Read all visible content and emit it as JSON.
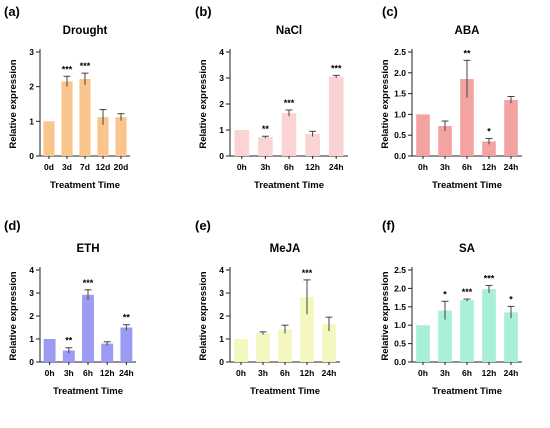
{
  "chart_data": [
    {
      "panel": "(a)",
      "type": "bar",
      "title": "Drought",
      "xlabel": "Treatment Time",
      "ylabel": "Relative expression",
      "categories": [
        "0d",
        "3d",
        "7d",
        "12d",
        "20d"
      ],
      "values": [
        1.0,
        2.15,
        2.22,
        1.12,
        1.12
      ],
      "errors": [
        0.0,
        0.15,
        0.17,
        0.22,
        0.1
      ],
      "significance": [
        "",
        "***",
        "***",
        "",
        ""
      ],
      "ylim": [
        0,
        3
      ],
      "yticks": [
        0,
        1,
        2,
        3
      ],
      "yticklabels": [
        "0",
        "1",
        "2",
        "3"
      ],
      "color": "#F9C58D"
    },
    {
      "panel": "(b)",
      "type": "bar",
      "title": "NaCl",
      "xlabel": "Treatment Time",
      "ylabel": "Relative expression",
      "categories": [
        "0h",
        "3h",
        "6h",
        "12h",
        "24h"
      ],
      "values": [
        1.0,
        0.72,
        1.65,
        0.85,
        3.05
      ],
      "errors": [
        0.0,
        0.04,
        0.12,
        0.1,
        0.05
      ],
      "significance": [
        "",
        "**",
        "***",
        "",
        "***"
      ],
      "ylim": [
        0,
        4
      ],
      "yticks": [
        0,
        1,
        2,
        3,
        4
      ],
      "yticklabels": [
        "0",
        "1",
        "2",
        "3",
        "4"
      ],
      "color": "#FBD3D3"
    },
    {
      "panel": "(c)",
      "type": "bar",
      "title": "ABA",
      "xlabel": "Treatment Time",
      "ylabel": "Relative expression",
      "categories": [
        "0h",
        "3h",
        "6h",
        "12h",
        "24h"
      ],
      "values": [
        1.0,
        0.72,
        1.85,
        0.35,
        1.35
      ],
      "errors": [
        0.0,
        0.12,
        0.45,
        0.07,
        0.08
      ],
      "significance": [
        "",
        "",
        "**",
        "*",
        ""
      ],
      "ylim": [
        0,
        2.5
      ],
      "yticks": [
        0,
        0.5,
        1,
        1.5,
        2,
        2.5
      ],
      "yticklabels": [
        "0.0",
        "0.5",
        "1.0",
        "1.5",
        "2.0",
        "2.5"
      ],
      "color": "#F4A3A3"
    },
    {
      "panel": "(d)",
      "type": "bar",
      "title": "ETH",
      "xlabel": "Treatment Time",
      "ylabel": "Relative expression",
      "categories": [
        "0h",
        "3h",
        "6h",
        "12h",
        "24h"
      ],
      "values": [
        1.0,
        0.5,
        2.92,
        0.8,
        1.5
      ],
      "errors": [
        0.0,
        0.12,
        0.22,
        0.08,
        0.12
      ],
      "significance": [
        "",
        "**",
        "***",
        "",
        "**"
      ],
      "ylim": [
        0,
        4
      ],
      "yticks": [
        0,
        1,
        2,
        3,
        4
      ],
      "yticklabels": [
        "0",
        "1",
        "2",
        "3",
        "4"
      ],
      "color": "#9B9BF3"
    },
    {
      "panel": "(e)",
      "type": "bar",
      "title": "MeJA",
      "xlabel": "Treatment Time",
      "ylabel": "Relative expression",
      "categories": [
        "0h",
        "3h",
        "6h",
        "12h",
        "24h"
      ],
      "values": [
        1.0,
        1.25,
        1.42,
        2.82,
        1.65
      ],
      "errors": [
        0.0,
        0.06,
        0.18,
        0.75,
        0.3
      ],
      "significance": [
        "",
        "",
        "",
        "***",
        ""
      ],
      "ylim": [
        0,
        4
      ],
      "yticks": [
        0,
        1,
        2,
        3,
        4
      ],
      "yticklabels": [
        "0",
        "1",
        "2",
        "3",
        "4"
      ],
      "color": "#F4F7BE"
    },
    {
      "panel": "(f)",
      "type": "bar",
      "title": "SA",
      "xlabel": "Treatment Time",
      "ylabel": "Relative expression",
      "categories": [
        "0h",
        "3h",
        "6h",
        "12h",
        "24h"
      ],
      "values": [
        1.0,
        1.4,
        1.68,
        1.98,
        1.35
      ],
      "errors": [
        0.0,
        0.25,
        0.03,
        0.1,
        0.16
      ],
      "significance": [
        "",
        "*",
        "***",
        "***",
        "*"
      ],
      "ylim": [
        0,
        2.5
      ],
      "yticks": [
        0,
        0.5,
        1,
        1.5,
        2,
        2.5
      ],
      "yticklabels": [
        "0.0",
        "0.5",
        "1.0",
        "1.5",
        "2.0",
        "2.5"
      ],
      "color": "#A8F0D8"
    }
  ]
}
